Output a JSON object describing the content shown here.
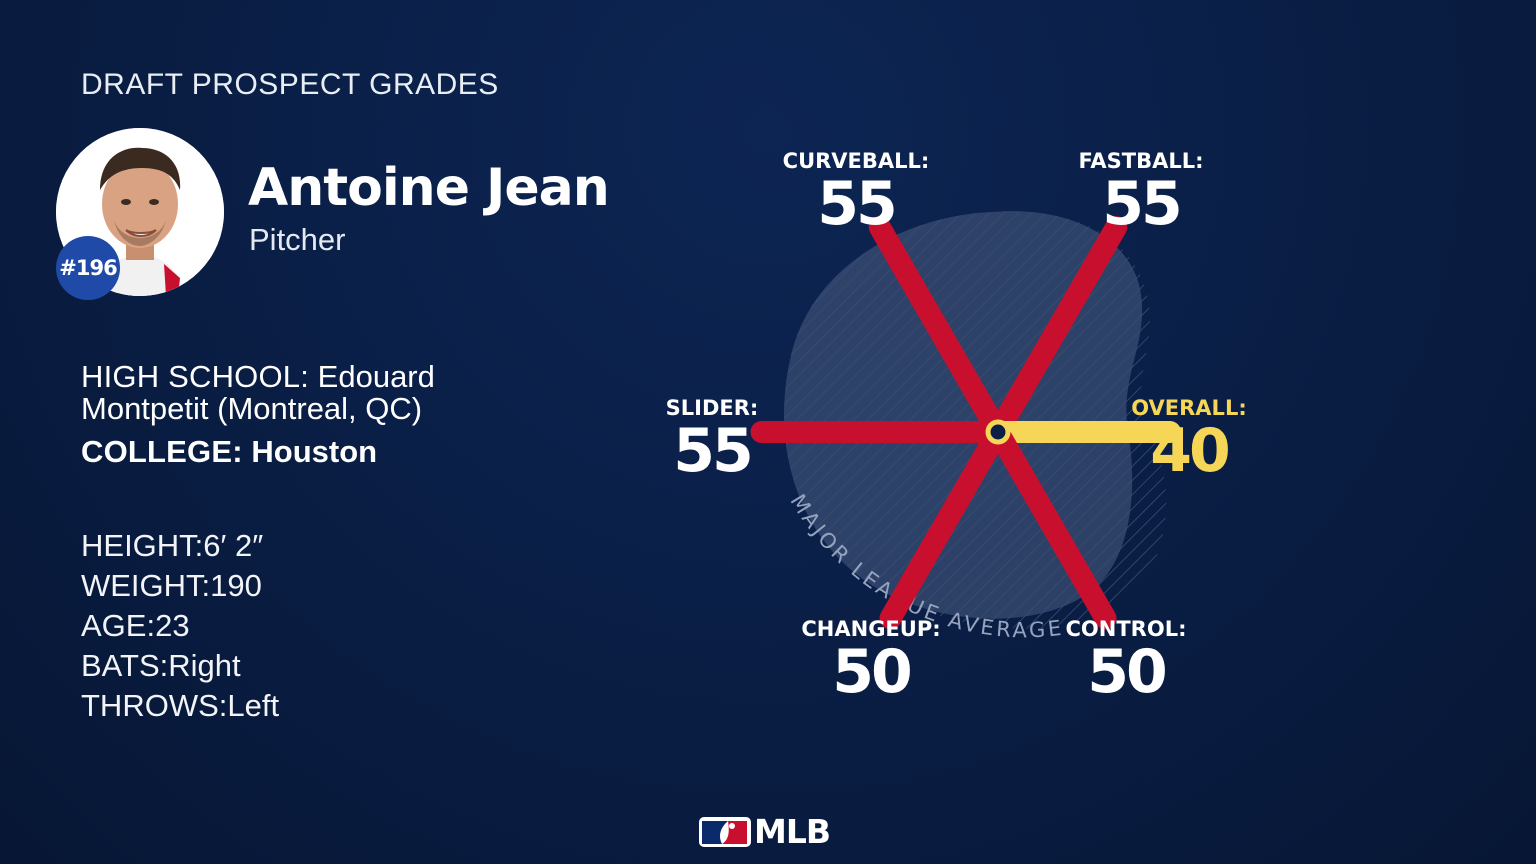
{
  "header": {
    "title": "DRAFT PROSPECT GRADES"
  },
  "player": {
    "name": "Antoine Jean",
    "position": "Pitcher",
    "rank": "#196"
  },
  "education": {
    "high_school_label": "HIGH SCHOOL:",
    "high_school_value": "Edouard Montpetit (Montreal, QC)",
    "college_label": "COLLEGE:",
    "college_value": "Houston"
  },
  "vitals": [
    {
      "label": "HEIGHT:",
      "value": "6′ 2″"
    },
    {
      "label": "WEIGHT:",
      "value": "190"
    },
    {
      "label": "AGE:",
      "value": "23"
    },
    {
      "label": "BATS:",
      "value": "Right"
    },
    {
      "label": "THROWS:",
      "value": "Left"
    }
  ],
  "colors": {
    "background": "#0a1f47",
    "tool_bar": "#c8102e",
    "overall_bar": "#f5d657",
    "average_zone": "#3a4d73"
  },
  "chart_data": {
    "type": "radial",
    "reference_label": "MAJOR LEAGUE AVERAGE",
    "series": [
      {
        "name": "CURVEBALL:",
        "value": 55
      },
      {
        "name": "FASTBALL:",
        "value": 55
      },
      {
        "name": "SLIDER:",
        "value": 55
      },
      {
        "name": "OVERALL:",
        "value": 40
      },
      {
        "name": "CHANGEUP:",
        "value": 50
      },
      {
        "name": "CONTROL:",
        "value": 50
      }
    ]
  },
  "footer": {
    "logo_text": "MLB"
  }
}
